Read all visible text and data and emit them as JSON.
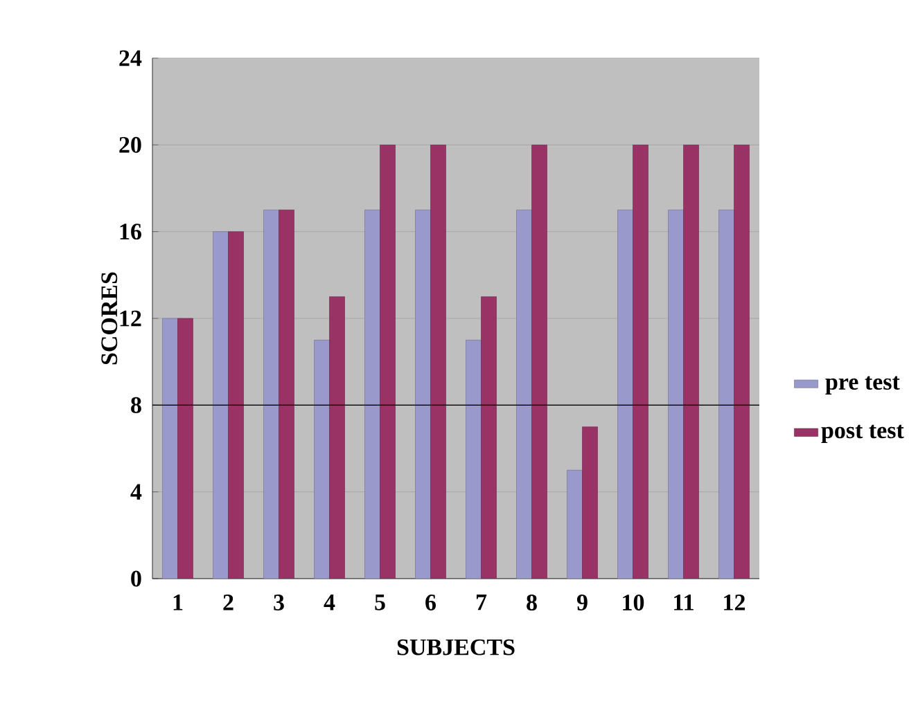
{
  "chart_data": {
    "type": "bar",
    "xlabel": "SUBJECTS",
    "ylabel": "SCORES",
    "categories": [
      "1",
      "2",
      "3",
      "4",
      "5",
      "6",
      "7",
      "8",
      "9",
      "10",
      "11",
      "12"
    ],
    "series": [
      {
        "name": "pre test",
        "color": "#9999cc",
        "values": [
          12,
          16,
          17,
          11,
          17,
          17,
          11,
          17,
          5,
          17,
          17,
          17
        ]
      },
      {
        "name": "post test",
        "color": "#993366",
        "values": [
          12,
          16,
          17,
          13,
          20,
          20,
          13,
          20,
          7,
          20,
          20,
          20
        ]
      }
    ],
    "ylim": [
      0,
      24
    ],
    "yticks": [
      0,
      4,
      8,
      12,
      16,
      20,
      24
    ],
    "grid": "y",
    "legend": "right",
    "ref_lines": [
      {
        "axis": "y",
        "value": 8,
        "color": "#000000"
      }
    ]
  }
}
